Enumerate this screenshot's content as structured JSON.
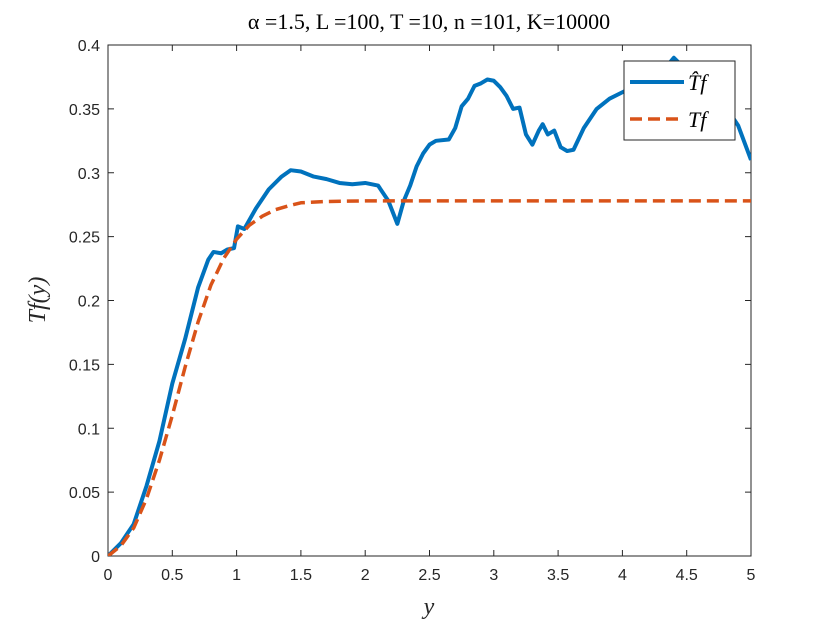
{
  "chart_data": {
    "type": "line",
    "title": "α =1.5, L =100, T =10, n =101, K=10000",
    "xlabel": "y",
    "ylabel": "Tf(y)",
    "xlim": [
      0,
      5
    ],
    "ylim": [
      0,
      0.4
    ],
    "xticks": [
      "0",
      "0.5",
      "1",
      "1.5",
      "2",
      "2.5",
      "3",
      "3.5",
      "4",
      "4.5",
      "5"
    ],
    "yticks": [
      "0",
      "0.05",
      "0.1",
      "0.15",
      "0.2",
      "0.25",
      "0.3",
      "0.35",
      "0.4"
    ],
    "grid": false,
    "legend_position": "top-right",
    "series": [
      {
        "name": "T̂f",
        "color": "#0072BD",
        "style": "solid",
        "points": [
          [
            0,
            0
          ],
          [
            0.1,
            0.01
          ],
          [
            0.2,
            0.025
          ],
          [
            0.3,
            0.055
          ],
          [
            0.4,
            0.09
          ],
          [
            0.5,
            0.135
          ],
          [
            0.6,
            0.17
          ],
          [
            0.7,
            0.21
          ],
          [
            0.78,
            0.232
          ],
          [
            0.82,
            0.238
          ],
          [
            0.88,
            0.237
          ],
          [
            0.93,
            0.24
          ],
          [
            0.98,
            0.241
          ],
          [
            1.01,
            0.258
          ],
          [
            1.06,
            0.256
          ],
          [
            1.15,
            0.272
          ],
          [
            1.25,
            0.287
          ],
          [
            1.35,
            0.297
          ],
          [
            1.42,
            0.302
          ],
          [
            1.5,
            0.301
          ],
          [
            1.6,
            0.297
          ],
          [
            1.7,
            0.295
          ],
          [
            1.8,
            0.292
          ],
          [
            1.9,
            0.291
          ],
          [
            2.0,
            0.292
          ],
          [
            2.1,
            0.29
          ],
          [
            2.18,
            0.278
          ],
          [
            2.25,
            0.26
          ],
          [
            2.3,
            0.278
          ],
          [
            2.35,
            0.29
          ],
          [
            2.4,
            0.305
          ],
          [
            2.45,
            0.315
          ],
          [
            2.5,
            0.322
          ],
          [
            2.55,
            0.325
          ],
          [
            2.65,
            0.326
          ],
          [
            2.7,
            0.335
          ],
          [
            2.75,
            0.352
          ],
          [
            2.8,
            0.358
          ],
          [
            2.85,
            0.368
          ],
          [
            2.9,
            0.37
          ],
          [
            2.95,
            0.373
          ],
          [
            3.0,
            0.372
          ],
          [
            3.05,
            0.367
          ],
          [
            3.1,
            0.36
          ],
          [
            3.15,
            0.35
          ],
          [
            3.2,
            0.351
          ],
          [
            3.25,
            0.33
          ],
          [
            3.3,
            0.322
          ],
          [
            3.35,
            0.333
          ],
          [
            3.38,
            0.338
          ],
          [
            3.42,
            0.33
          ],
          [
            3.47,
            0.333
          ],
          [
            3.52,
            0.32
          ],
          [
            3.57,
            0.317
          ],
          [
            3.62,
            0.318
          ],
          [
            3.7,
            0.335
          ],
          [
            3.8,
            0.35
          ],
          [
            3.9,
            0.358
          ],
          [
            4.0,
            0.363
          ],
          [
            4.1,
            0.368
          ],
          [
            4.2,
            0.372
          ],
          [
            4.3,
            0.378
          ],
          [
            4.4,
            0.39
          ],
          [
            4.5,
            0.38
          ],
          [
            4.7,
            0.365
          ],
          [
            4.8,
            0.352
          ],
          [
            4.9,
            0.337
          ],
          [
            5.0,
            0.31
          ]
        ]
      },
      {
        "name": "Tf",
        "color": "#D95319",
        "style": "dashed",
        "points": [
          [
            0,
            0
          ],
          [
            0.1,
            0.008
          ],
          [
            0.2,
            0.022
          ],
          [
            0.3,
            0.045
          ],
          [
            0.4,
            0.075
          ],
          [
            0.5,
            0.11
          ],
          [
            0.6,
            0.148
          ],
          [
            0.7,
            0.183
          ],
          [
            0.8,
            0.212
          ],
          [
            0.9,
            0.233
          ],
          [
            1.0,
            0.248
          ],
          [
            1.1,
            0.259
          ],
          [
            1.2,
            0.266
          ],
          [
            1.3,
            0.271
          ],
          [
            1.4,
            0.274
          ],
          [
            1.5,
            0.2765
          ],
          [
            1.7,
            0.2775
          ],
          [
            2.0,
            0.278
          ],
          [
            2.5,
            0.278
          ],
          [
            3.0,
            0.278
          ],
          [
            4.0,
            0.278
          ],
          [
            5.0,
            0.278
          ]
        ]
      }
    ]
  }
}
